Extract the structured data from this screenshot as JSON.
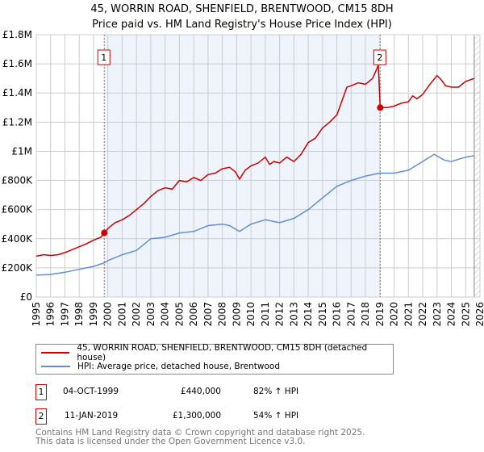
{
  "chart_data": {
    "type": "line",
    "title": "45, WORRIN ROAD, SHENFIELD, BRENTWOOD, CM15 8DH",
    "subtitle": "Price paid vs. HM Land Registry's House Price Index (HPI)",
    "xlim": [
      1995,
      2026
    ],
    "ylim": [
      0,
      1800000
    ],
    "yticks": [
      {
        "v": 0,
        "l": "£0"
      },
      {
        "v": 200000,
        "l": "£200K"
      },
      {
        "v": 400000,
        "l": "£400K"
      },
      {
        "v": 600000,
        "l": "£600K"
      },
      {
        "v": 800000,
        "l": "£800K"
      },
      {
        "v": 1000000,
        "l": "£1M"
      },
      {
        "v": 1200000,
        "l": "£1.2M"
      },
      {
        "v": 1400000,
        "l": "£1.4M"
      },
      {
        "v": 1600000,
        "l": "£1.6M"
      },
      {
        "v": 1800000,
        "l": "£1.8M"
      }
    ],
    "xticks": [
      "1995",
      "1996",
      "1997",
      "1998",
      "1999",
      "2000",
      "2001",
      "2002",
      "2003",
      "2004",
      "2005",
      "2006",
      "2007",
      "2008",
      "2009",
      "2010",
      "2011",
      "2012",
      "2013",
      "2014",
      "2015",
      "2016",
      "2017",
      "2018",
      "2019",
      "2020",
      "2021",
      "2022",
      "2023",
      "2024",
      "2025",
      "2026"
    ],
    "grid": true,
    "shaded_range": [
      1999.75,
      2019.03
    ],
    "forecast_hatch_from": 2025.6,
    "series": [
      {
        "name": "45, WORRIN ROAD, SHENFIELD, BRENTWOOD, CM15 8DH (detached house)",
        "color": "#cc0000",
        "x": [
          1995,
          1995.5,
          1996,
          1996.5,
          1997,
          1997.5,
          1998,
          1998.5,
          1999,
          1999.5,
          1999.75,
          2000,
          2000.5,
          2001,
          2001.5,
          2002,
          2002.5,
          2003,
          2003.5,
          2004,
          2004.5,
          2005,
          2005.5,
          2006,
          2006.5,
          2007,
          2007.5,
          2008,
          2008.5,
          2008.9,
          2009.2,
          2009.6,
          2010,
          2010.5,
          2011,
          2011.3,
          2011.6,
          2012,
          2012.5,
          2013,
          2013.5,
          2014,
          2014.5,
          2015,
          2015.5,
          2016,
          2016.3,
          2016.7,
          2017,
          2017.5,
          2018,
          2018.5,
          2018.9,
          2019.03,
          2019.5,
          2020,
          2020.5,
          2021,
          2021.3,
          2021.6,
          2022,
          2022.5,
          2023,
          2023.3,
          2023.6,
          2024,
          2024.5,
          2025,
          2025.6
        ],
        "y": [
          280000,
          290000,
          285000,
          290000,
          305000,
          325000,
          345000,
          365000,
          390000,
          410000,
          440000,
          470000,
          510000,
          530000,
          560000,
          600000,
          640000,
          690000,
          730000,
          750000,
          740000,
          800000,
          790000,
          820000,
          800000,
          840000,
          850000,
          880000,
          890000,
          860000,
          810000,
          870000,
          900000,
          920000,
          960000,
          910000,
          930000,
          920000,
          960000,
          930000,
          980000,
          1060000,
          1090000,
          1160000,
          1200000,
          1250000,
          1330000,
          1440000,
          1450000,
          1470000,
          1460000,
          1500000,
          1590000,
          1300000,
          1300000,
          1310000,
          1330000,
          1340000,
          1380000,
          1360000,
          1390000,
          1460000,
          1520000,
          1490000,
          1450000,
          1440000,
          1440000,
          1480000,
          1500000
        ]
      },
      {
        "name": "HPI: Average price, detached house, Brentwood",
        "color": "#6090d0",
        "x": [
          1995,
          1996,
          1997,
          1998,
          1999,
          1999.75,
          2000,
          2001,
          2002,
          2003,
          2004,
          2005,
          2006,
          2007,
          2008,
          2008.5,
          2009.2,
          2010,
          2011,
          2012,
          2013,
          2014,
          2015,
          2016,
          2017,
          2018,
          2019,
          2020,
          2021,
          2022,
          2022.8,
          2023.5,
          2024,
          2025,
          2025.6
        ],
        "y": [
          150000,
          155000,
          170000,
          190000,
          210000,
          235000,
          250000,
          290000,
          320000,
          400000,
          410000,
          440000,
          450000,
          490000,
          500000,
          490000,
          450000,
          500000,
          530000,
          510000,
          540000,
          600000,
          680000,
          760000,
          800000,
          830000,
          850000,
          850000,
          870000,
          930000,
          980000,
          940000,
          930000,
          960000,
          970000
        ]
      }
    ],
    "annotations": [
      {
        "label": "1",
        "x": 1999.75,
        "y": 440000
      },
      {
        "label": "2",
        "x": 2019.03,
        "y": 1300000
      }
    ]
  },
  "legend": {
    "red": "45, WORRIN ROAD, SHENFIELD, BRENTWOOD, CM15 8DH (detached house)",
    "blue": "HPI: Average price, detached house, Brentwood"
  },
  "sales": [
    {
      "num": "1",
      "date": "04-OCT-1999",
      "price": "£440,000",
      "hpi": "82% ↑ HPI"
    },
    {
      "num": "2",
      "date": "11-JAN-2019",
      "price": "£1,300,000",
      "hpi": "54% ↑ HPI"
    }
  ],
  "footer": {
    "line1": "Contains HM Land Registry data © Crown copyright and database right 2025.",
    "line2": "This data is licensed under the Open Government Licence v3.0."
  }
}
